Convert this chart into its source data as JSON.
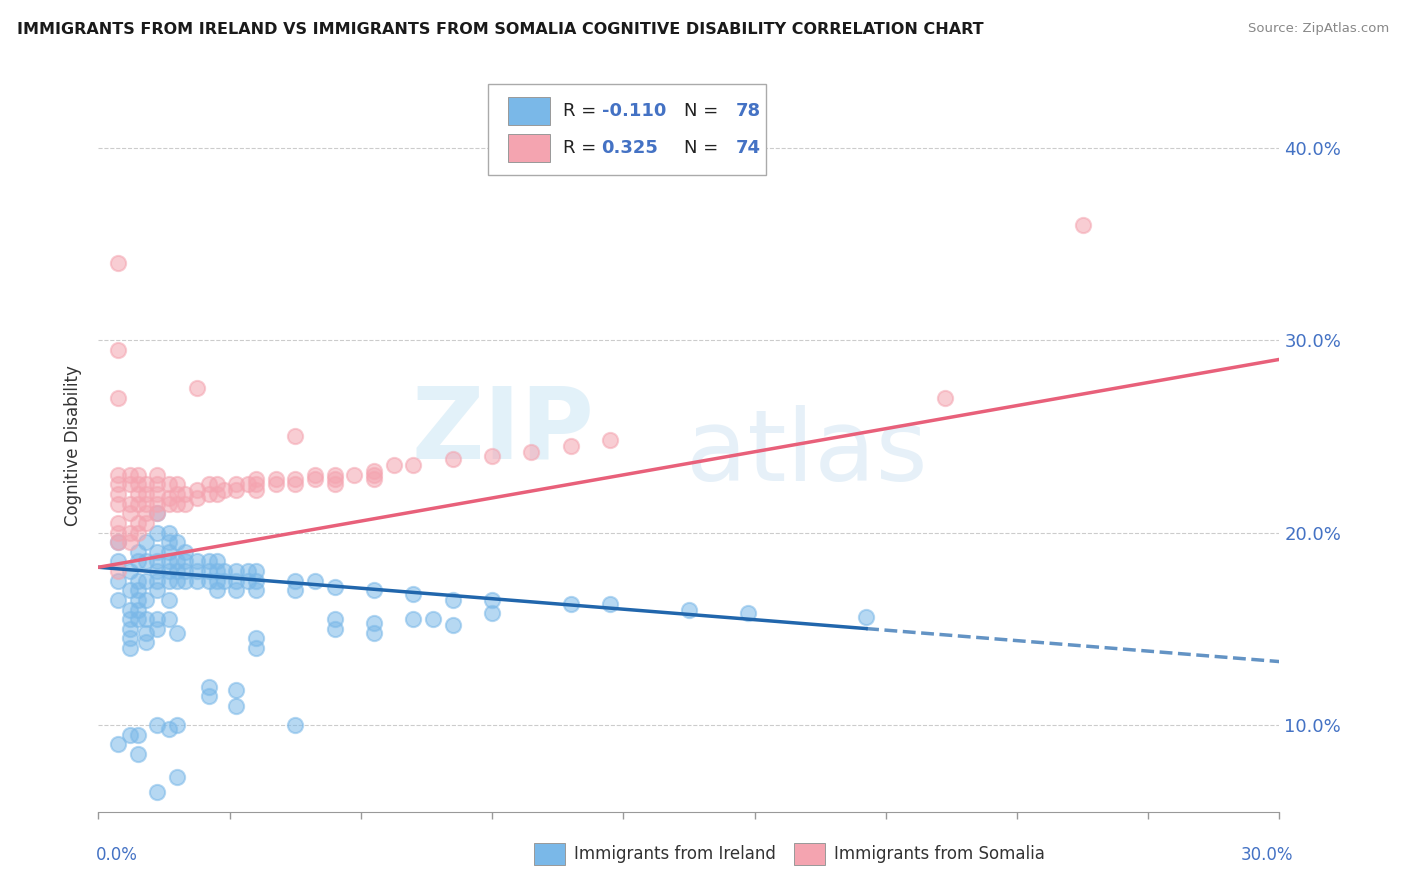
{
  "title": "IMMIGRANTS FROM IRELAND VS IMMIGRANTS FROM SOMALIA COGNITIVE DISABILITY CORRELATION CHART",
  "source": "Source: ZipAtlas.com",
  "ylabel": "Cognitive Disability",
  "yticks": [
    "10.0%",
    "20.0%",
    "30.0%",
    "40.0%"
  ],
  "ytick_vals": [
    0.1,
    0.2,
    0.3,
    0.4
  ],
  "xlim": [
    0.0,
    0.3
  ],
  "ylim": [
    0.055,
    0.435
  ],
  "ireland_color": "#7ab8e8",
  "somalia_color": "#f4a4b0",
  "trend_ireland_color": "#2166ac",
  "trend_somalia_color": "#e8607a",
  "watermark_zip": "ZIP",
  "watermark_atlas": "atlas",
  "ireland_scatter": [
    [
      0.005,
      0.175
    ],
    [
      0.005,
      0.165
    ],
    [
      0.005,
      0.185
    ],
    [
      0.005,
      0.195
    ],
    [
      0.008,
      0.17
    ],
    [
      0.008,
      0.155
    ],
    [
      0.008,
      0.16
    ],
    [
      0.008,
      0.18
    ],
    [
      0.01,
      0.17
    ],
    [
      0.01,
      0.165
    ],
    [
      0.01,
      0.175
    ],
    [
      0.01,
      0.185
    ],
    [
      0.01,
      0.19
    ],
    [
      0.01,
      0.16
    ],
    [
      0.01,
      0.155
    ],
    [
      0.012,
      0.175
    ],
    [
      0.012,
      0.185
    ],
    [
      0.012,
      0.195
    ],
    [
      0.012,
      0.165
    ],
    [
      0.015,
      0.18
    ],
    [
      0.015,
      0.19
    ],
    [
      0.015,
      0.185
    ],
    [
      0.015,
      0.17
    ],
    [
      0.015,
      0.2
    ],
    [
      0.015,
      0.175
    ],
    [
      0.015,
      0.21
    ],
    [
      0.018,
      0.185
    ],
    [
      0.018,
      0.195
    ],
    [
      0.018,
      0.175
    ],
    [
      0.018,
      0.165
    ],
    [
      0.018,
      0.18
    ],
    [
      0.018,
      0.19
    ],
    [
      0.018,
      0.2
    ],
    [
      0.02,
      0.185
    ],
    [
      0.02,
      0.175
    ],
    [
      0.02,
      0.195
    ],
    [
      0.02,
      0.18
    ],
    [
      0.022,
      0.18
    ],
    [
      0.022,
      0.19
    ],
    [
      0.022,
      0.175
    ],
    [
      0.022,
      0.185
    ],
    [
      0.025,
      0.18
    ],
    [
      0.025,
      0.185
    ],
    [
      0.025,
      0.175
    ],
    [
      0.028,
      0.175
    ],
    [
      0.028,
      0.18
    ],
    [
      0.028,
      0.185
    ],
    [
      0.03,
      0.175
    ],
    [
      0.03,
      0.18
    ],
    [
      0.03,
      0.185
    ],
    [
      0.03,
      0.17
    ],
    [
      0.032,
      0.175
    ],
    [
      0.032,
      0.18
    ],
    [
      0.035,
      0.175
    ],
    [
      0.035,
      0.18
    ],
    [
      0.035,
      0.17
    ],
    [
      0.038,
      0.175
    ],
    [
      0.038,
      0.18
    ],
    [
      0.04,
      0.175
    ],
    [
      0.04,
      0.18
    ],
    [
      0.04,
      0.17
    ],
    [
      0.05,
      0.175
    ],
    [
      0.05,
      0.17
    ],
    [
      0.055,
      0.175
    ],
    [
      0.06,
      0.172
    ],
    [
      0.07,
      0.17
    ],
    [
      0.08,
      0.168
    ],
    [
      0.09,
      0.165
    ],
    [
      0.1,
      0.165
    ],
    [
      0.12,
      0.163
    ],
    [
      0.13,
      0.163
    ],
    [
      0.15,
      0.16
    ],
    [
      0.165,
      0.158
    ],
    [
      0.195,
      0.156
    ],
    [
      0.008,
      0.15
    ],
    [
      0.008,
      0.145
    ],
    [
      0.008,
      0.14
    ],
    [
      0.012,
      0.148
    ],
    [
      0.012,
      0.143
    ],
    [
      0.015,
      0.15
    ],
    [
      0.02,
      0.148
    ],
    [
      0.04,
      0.145
    ],
    [
      0.04,
      0.14
    ],
    [
      0.012,
      0.155
    ],
    [
      0.015,
      0.155
    ],
    [
      0.018,
      0.155
    ],
    [
      0.005,
      0.09
    ],
    [
      0.008,
      0.095
    ],
    [
      0.01,
      0.095
    ],
    [
      0.015,
      0.1
    ],
    [
      0.018,
      0.098
    ],
    [
      0.02,
      0.1
    ],
    [
      0.01,
      0.085
    ],
    [
      0.015,
      0.065
    ],
    [
      0.02,
      0.073
    ],
    [
      0.05,
      0.1
    ],
    [
      0.028,
      0.12
    ],
    [
      0.028,
      0.115
    ],
    [
      0.035,
      0.11
    ],
    [
      0.035,
      0.118
    ],
    [
      0.06,
      0.15
    ],
    [
      0.06,
      0.155
    ],
    [
      0.07,
      0.148
    ],
    [
      0.07,
      0.153
    ],
    [
      0.08,
      0.155
    ],
    [
      0.085,
      0.155
    ],
    [
      0.09,
      0.152
    ],
    [
      0.1,
      0.158
    ]
  ],
  "somalia_scatter": [
    [
      0.005,
      0.2
    ],
    [
      0.005,
      0.215
    ],
    [
      0.005,
      0.225
    ],
    [
      0.005,
      0.205
    ],
    [
      0.005,
      0.195
    ],
    [
      0.005,
      0.23
    ],
    [
      0.005,
      0.22
    ],
    [
      0.008,
      0.215
    ],
    [
      0.008,
      0.2
    ],
    [
      0.008,
      0.225
    ],
    [
      0.008,
      0.195
    ],
    [
      0.008,
      0.21
    ],
    [
      0.008,
      0.23
    ],
    [
      0.01,
      0.205
    ],
    [
      0.01,
      0.215
    ],
    [
      0.01,
      0.225
    ],
    [
      0.01,
      0.2
    ],
    [
      0.01,
      0.22
    ],
    [
      0.01,
      0.23
    ],
    [
      0.012,
      0.21
    ],
    [
      0.012,
      0.22
    ],
    [
      0.012,
      0.215
    ],
    [
      0.012,
      0.225
    ],
    [
      0.012,
      0.205
    ],
    [
      0.015,
      0.215
    ],
    [
      0.015,
      0.225
    ],
    [
      0.015,
      0.21
    ],
    [
      0.015,
      0.22
    ],
    [
      0.015,
      0.23
    ],
    [
      0.018,
      0.215
    ],
    [
      0.018,
      0.225
    ],
    [
      0.018,
      0.218
    ],
    [
      0.02,
      0.22
    ],
    [
      0.02,
      0.215
    ],
    [
      0.02,
      0.225
    ],
    [
      0.022,
      0.22
    ],
    [
      0.022,
      0.215
    ],
    [
      0.025,
      0.222
    ],
    [
      0.025,
      0.218
    ],
    [
      0.028,
      0.22
    ],
    [
      0.028,
      0.225
    ],
    [
      0.03,
      0.22
    ],
    [
      0.03,
      0.225
    ],
    [
      0.032,
      0.222
    ],
    [
      0.035,
      0.222
    ],
    [
      0.035,
      0.225
    ],
    [
      0.038,
      0.225
    ],
    [
      0.04,
      0.222
    ],
    [
      0.04,
      0.225
    ],
    [
      0.04,
      0.228
    ],
    [
      0.045,
      0.225
    ],
    [
      0.045,
      0.228
    ],
    [
      0.05,
      0.228
    ],
    [
      0.05,
      0.225
    ],
    [
      0.055,
      0.228
    ],
    [
      0.055,
      0.23
    ],
    [
      0.06,
      0.23
    ],
    [
      0.06,
      0.228
    ],
    [
      0.065,
      0.23
    ],
    [
      0.07,
      0.23
    ],
    [
      0.07,
      0.232
    ],
    [
      0.075,
      0.235
    ],
    [
      0.08,
      0.235
    ],
    [
      0.09,
      0.238
    ],
    [
      0.1,
      0.24
    ],
    [
      0.11,
      0.242
    ],
    [
      0.12,
      0.245
    ],
    [
      0.13,
      0.248
    ],
    [
      0.005,
      0.18
    ],
    [
      0.005,
      0.27
    ],
    [
      0.005,
      0.295
    ],
    [
      0.005,
      0.34
    ],
    [
      0.025,
      0.275
    ],
    [
      0.05,
      0.25
    ],
    [
      0.06,
      0.225
    ],
    [
      0.07,
      0.228
    ],
    [
      0.25,
      0.36
    ],
    [
      0.215,
      0.27
    ]
  ],
  "ireland_trend_x": [
    0.0,
    0.3
  ],
  "ireland_trend_y": [
    0.182,
    0.133
  ],
  "ireland_trend_solid_end": 0.195,
  "somalia_trend_x": [
    0.0,
    0.3
  ],
  "somalia_trend_y": [
    0.182,
    0.29
  ]
}
